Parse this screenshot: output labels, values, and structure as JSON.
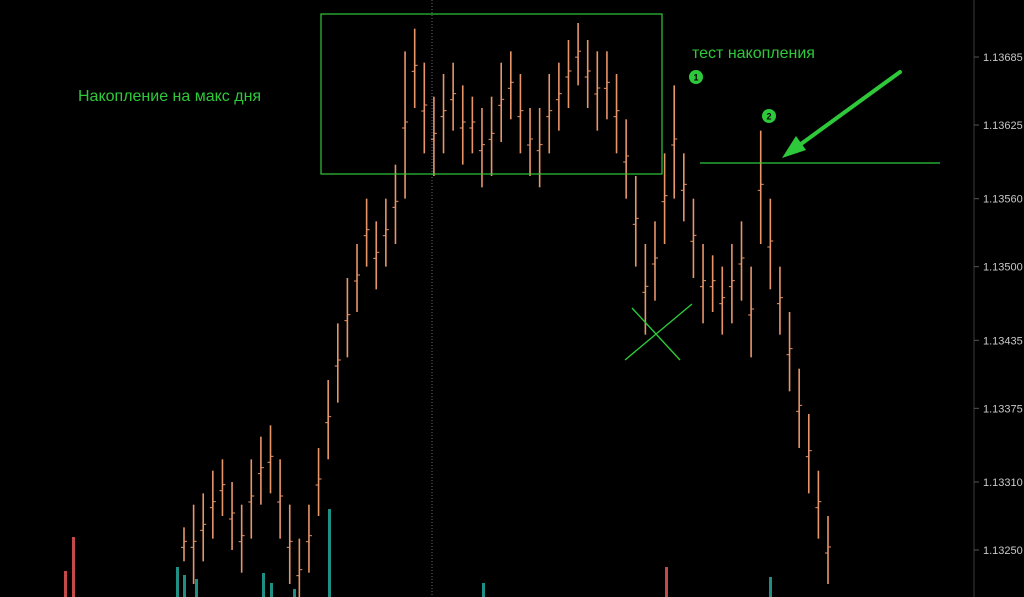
{
  "colors": {
    "background": "#000000",
    "bar": "#e8956a",
    "annotation": "#2ec93a",
    "axis_text": "#c8c8c8",
    "volume_bar": "#1f8f85",
    "volume_bar_alt": "#c44a4a",
    "dotted_separator": "#666666"
  },
  "annotations": {
    "accumulation_label": "Накопление на макс дня",
    "test_label": "тест накопления",
    "badge_1": "1",
    "badge_2": "2",
    "arrow_icon": "arrow-down-left-icon",
    "cross_icon": "x-mark-icon"
  },
  "chart_data": {
    "type": "bar",
    "ohlc_style": "hlc-bars",
    "y_axis": {
      "position": "right",
      "ticks": [
        "1.13685",
        "1.13625",
        "1.13560",
        "1.13500",
        "1.13435",
        "1.13375",
        "1.13310",
        "1.13250"
      ]
    },
    "grid": false,
    "accumulation_zone": {
      "high": 1.13715,
      "low": 1.13575
    },
    "test_level": 1.13585,
    "high_low_series": [
      [
        1.1324,
        1.1327
      ],
      [
        1.1322,
        1.1329
      ],
      [
        1.1324,
        1.133
      ],
      [
        1.1326,
        1.1332
      ],
      [
        1.1328,
        1.1333
      ],
      [
        1.1325,
        1.1331
      ],
      [
        1.1323,
        1.1329
      ],
      [
        1.1326,
        1.1333
      ],
      [
        1.1329,
        1.1335
      ],
      [
        1.133,
        1.1336
      ],
      [
        1.1326,
        1.1333
      ],
      [
        1.1322,
        1.1329
      ],
      [
        1.132,
        1.1326
      ],
      [
        1.1323,
        1.1329
      ],
      [
        1.1328,
        1.1334
      ],
      [
        1.1333,
        1.134
      ],
      [
        1.1338,
        1.1345
      ],
      [
        1.1342,
        1.1349
      ],
      [
        1.1346,
        1.1352
      ],
      [
        1.135,
        1.1356
      ],
      [
        1.1348,
        1.1354
      ],
      [
        1.135,
        1.1356
      ],
      [
        1.1352,
        1.1359
      ],
      [
        1.1356,
        1.1369
      ],
      [
        1.1364,
        1.1371
      ],
      [
        1.136,
        1.1368
      ],
      [
        1.1358,
        1.1365
      ],
      [
        1.136,
        1.1367
      ],
      [
        1.1362,
        1.1368
      ],
      [
        1.1359,
        1.1366
      ],
      [
        1.136,
        1.1365
      ],
      [
        1.1357,
        1.1364
      ],
      [
        1.1358,
        1.1365
      ],
      [
        1.1361,
        1.1368
      ],
      [
        1.1363,
        1.1369
      ],
      [
        1.136,
        1.1367
      ],
      [
        1.1358,
        1.1364
      ],
      [
        1.1357,
        1.1364
      ],
      [
        1.136,
        1.1367
      ],
      [
        1.1362,
        1.1368
      ],
      [
        1.1364,
        1.137
      ],
      [
        1.1366,
        1.13715
      ],
      [
        1.1364,
        1.137
      ],
      [
        1.1362,
        1.1369
      ],
      [
        1.1363,
        1.1369
      ],
      [
        1.136,
        1.1367
      ],
      [
        1.1356,
        1.1363
      ],
      [
        1.135,
        1.1358
      ],
      [
        1.1344,
        1.1352
      ],
      [
        1.1347,
        1.1354
      ],
      [
        1.1352,
        1.136
      ],
      [
        1.1356,
        1.1366
      ],
      [
        1.1354,
        1.136
      ],
      [
        1.1349,
        1.1356
      ],
      [
        1.1345,
        1.1352
      ],
      [
        1.1346,
        1.1351
      ],
      [
        1.1344,
        1.135
      ],
      [
        1.1345,
        1.1352
      ],
      [
        1.1347,
        1.1354
      ],
      [
        1.1342,
        1.135
      ],
      [
        1.1352,
        1.1362
      ],
      [
        1.1348,
        1.1356
      ],
      [
        1.1344,
        1.135
      ],
      [
        1.1339,
        1.1346
      ],
      [
        1.1334,
        1.1341
      ],
      [
        1.133,
        1.1337
      ],
      [
        1.1326,
        1.1332
      ],
      [
        1.1322,
        1.1328
      ]
    ]
  }
}
